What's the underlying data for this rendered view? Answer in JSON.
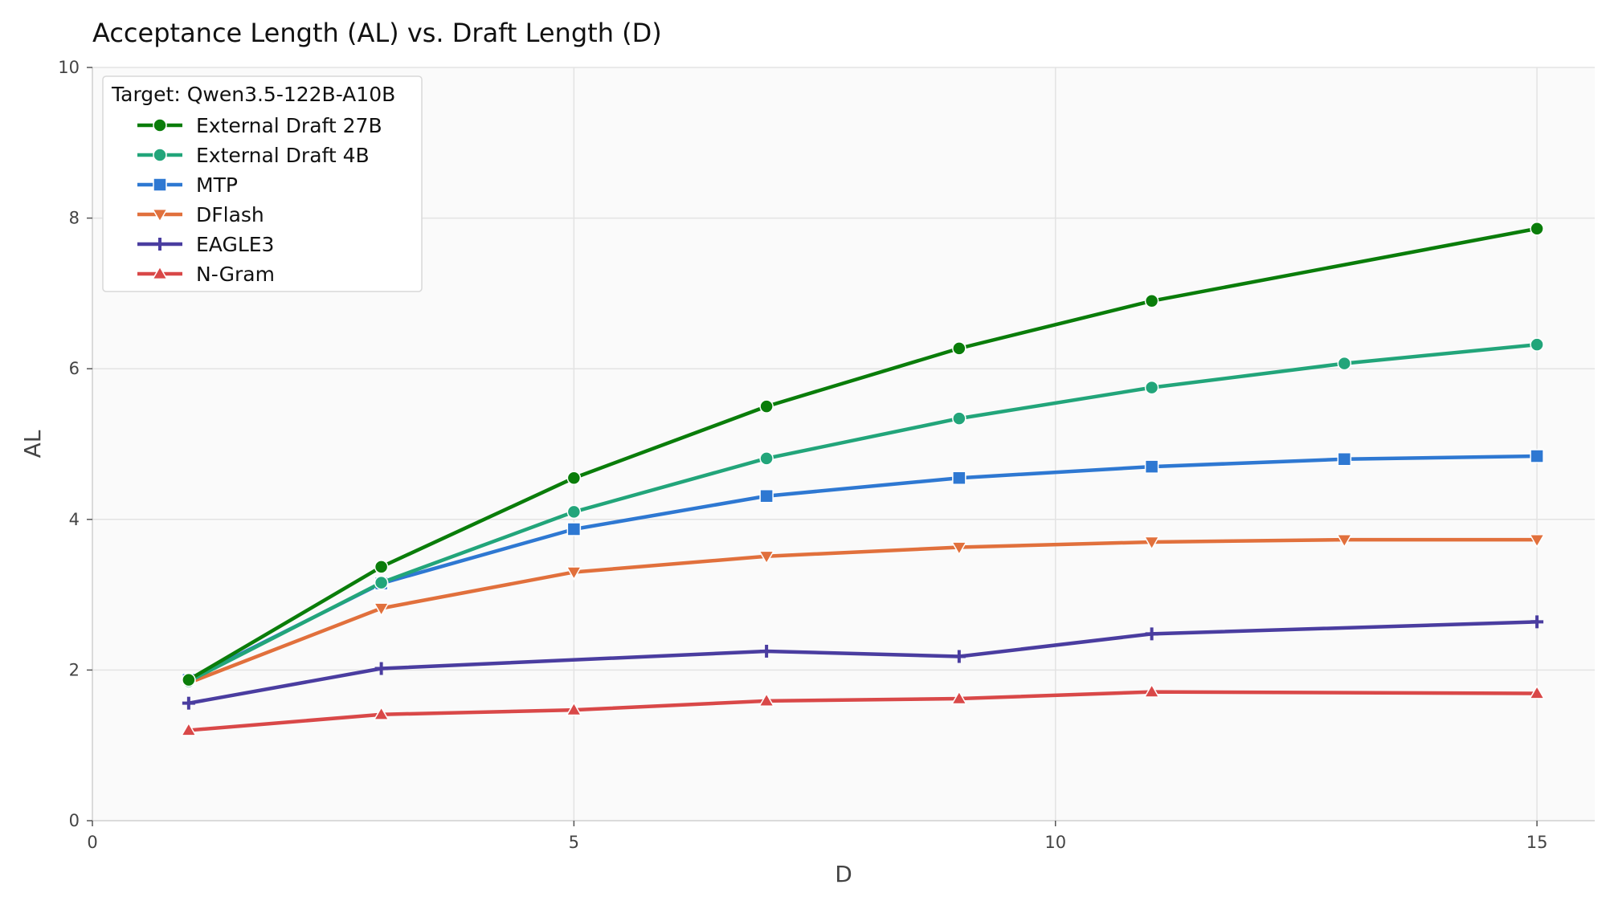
{
  "chart_data": {
    "type": "line",
    "title": "Acceptance Length (AL) vs. Draft Length (D)",
    "xlabel": "D",
    "ylabel": "AL",
    "xlim": [
      0,
      15.6
    ],
    "ylim": [
      0,
      10
    ],
    "xticks": [
      0,
      5,
      10,
      15
    ],
    "yticks": [
      0,
      2,
      4,
      6,
      8,
      10
    ],
    "grid": true,
    "legend_title": "Target: Qwen3.5-122B-A10B",
    "legend_position": "top-left",
    "series": [
      {
        "name": "External Draft 27B",
        "color": "#0a7d0a",
        "marker": "circle",
        "x": [
          1,
          3,
          5,
          7,
          9,
          11,
          15
        ],
        "y": [
          1.87,
          3.37,
          4.55,
          5.5,
          6.27,
          6.9,
          7.86
        ]
      },
      {
        "name": "External Draft 4B",
        "color": "#22a57a",
        "marker": "circle",
        "x": [
          1,
          3,
          5,
          7,
          9,
          11,
          13,
          15
        ],
        "y": [
          1.85,
          3.16,
          4.1,
          4.81,
          5.34,
          5.75,
          6.07,
          6.32
        ]
      },
      {
        "name": "MTP",
        "color": "#2e78d2",
        "marker": "square",
        "x": [
          1,
          3,
          5,
          7,
          9,
          11,
          13,
          15
        ],
        "y": [
          1.87,
          3.15,
          3.87,
          4.31,
          4.55,
          4.7,
          4.8,
          4.84
        ]
      },
      {
        "name": "DFlash",
        "color": "#e1703c",
        "marker": "triangle-down",
        "x": [
          1,
          3,
          5,
          7,
          9,
          11,
          13,
          15
        ],
        "y": [
          1.83,
          2.82,
          3.3,
          3.51,
          3.63,
          3.7,
          3.73,
          3.73
        ]
      },
      {
        "name": "EAGLE3",
        "color": "#4a3da0",
        "marker": "plus",
        "x": [
          1,
          3,
          7,
          9,
          11,
          15
        ],
        "y": [
          1.56,
          2.02,
          2.25,
          2.18,
          2.48,
          2.64
        ]
      },
      {
        "name": "N-Gram",
        "color": "#d94848",
        "marker": "triangle-up",
        "x": [
          1,
          3,
          5,
          7,
          9,
          11,
          15
        ],
        "y": [
          1.2,
          1.41,
          1.47,
          1.59,
          1.62,
          1.71,
          1.69
        ]
      }
    ]
  }
}
